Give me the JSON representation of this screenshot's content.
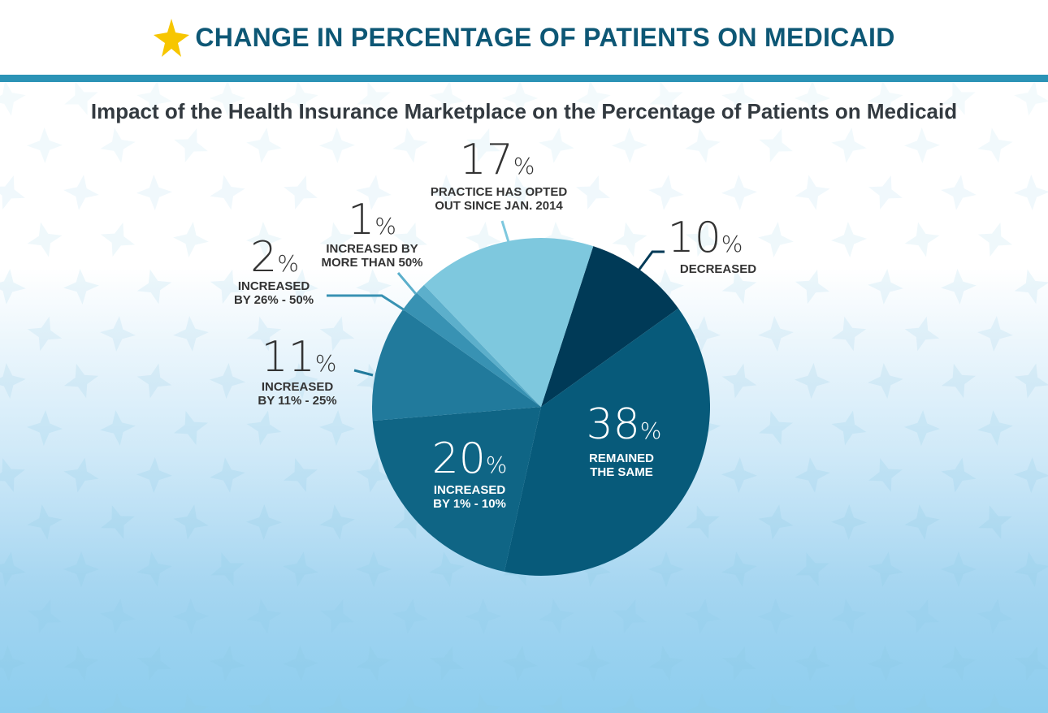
{
  "header": {
    "title": "CHANGE IN PERCENTAGE OF PATIENTS ON MEDICAID",
    "icon": "star-icon",
    "accent_color": "#0d5775",
    "star_color": "#f7c600",
    "rule_color": "#2b93b6"
  },
  "chart_data": {
    "type": "pie",
    "title": "Impact of the Health Insurance Marketplace on the Percentage of Patients on Medicaid",
    "slices": [
      {
        "value": 10,
        "label": "10",
        "unit": "%",
        "caption": [
          "DECREASED"
        ],
        "color": "#003a57"
      },
      {
        "value": 38,
        "label": "38",
        "unit": "%",
        "caption": [
          "REMAINED",
          "THE SAME"
        ],
        "color": "#075a7a"
      },
      {
        "value": 20,
        "label": "20",
        "unit": "%",
        "caption": [
          "INCREASED",
          "BY 1% - 10%"
        ],
        "color": "#0f6585"
      },
      {
        "value": 11,
        "label": "11",
        "unit": "%",
        "caption": [
          "INCREASED",
          "BY 11% - 25%"
        ],
        "color": "#217a9c"
      },
      {
        "value": 2,
        "label": "2",
        "unit": "%",
        "caption": [
          "INCREASED",
          "BY 26% - 50%"
        ],
        "color": "#3892b3"
      },
      {
        "value": 1,
        "label": "1",
        "unit": "%",
        "caption": [
          "INCREASED BY",
          "MORE THAN 50%"
        ],
        "color": "#5cafcb"
      },
      {
        "value": 17,
        "label": "17",
        "unit": "%",
        "caption": [
          "PRACTICE HAS OPTED",
          "OUT SINCE JAN. 2014"
        ],
        "color": "#7ec8de"
      }
    ],
    "legend": "none"
  }
}
